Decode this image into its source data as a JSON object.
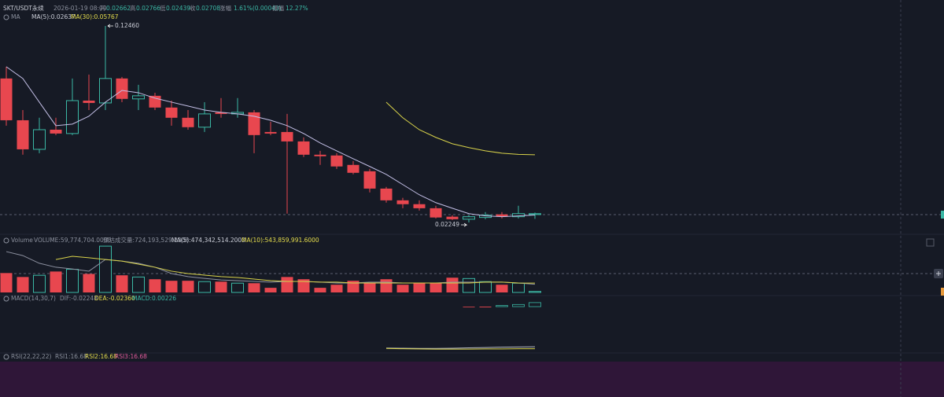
{
  "chart_data": [
    {
      "type": "candlestick",
      "title": "SKT/USDT永续",
      "date": "2026-01-19 08:00",
      "ohlc_labels": [
        "开",
        "高",
        "低",
        "收"
      ],
      "change_label": "涨幅",
      "change": "1.61%(0.00043)",
      "amplitude_label": "振幅",
      "amplitude": "12.27%",
      "indicator": "MA",
      "max_label": "0.12460",
      "up_color": "#3bb8a5",
      "down_color": "#e8474f",
      "ylim": [
        0.0176,
        0.1299
      ],
      "open": [
        0.0973,
        0.0756,
        0.0605,
        0.0707,
        0.0687,
        0.0858,
        0.0846,
        0.0973,
        0.0867,
        0.0883,
        0.0822,
        0.0769,
        0.072,
        0.0797,
        0.0789,
        0.0797,
        0.0695,
        0.0695,
        0.0646,
        0.0577,
        0.0573,
        0.0524,
        0.0491,
        0.0401,
        0.034,
        0.032,
        0.0299,
        0.0255,
        0.0242,
        0.0251,
        0.0267,
        0.0255,
        0.02662
      ],
      "high": [
        0.1034,
        0.0809,
        0.0769,
        0.0769,
        0.0973,
        0.0993,
        0.1246,
        0.0981,
        0.094,
        0.0899,
        0.0858,
        0.0809,
        0.085,
        0.0871,
        0.0871,
        0.0809,
        0.0748,
        0.0789,
        0.0667,
        0.0597,
        0.0585,
        0.0544,
        0.0503,
        0.041,
        0.0353,
        0.034,
        0.0312,
        0.0263,
        0.0263,
        0.0279,
        0.0279,
        0.0312,
        0.02766
      ],
      "low": [
        0.0728,
        0.0577,
        0.0585,
        0.0679,
        0.0679,
        0.0809,
        0.0809,
        0.085,
        0.0809,
        0.0809,
        0.0728,
        0.0707,
        0.0695,
        0.0769,
        0.0769,
        0.0585,
        0.0679,
        0.0271,
        0.0565,
        0.0524,
        0.0503,
        0.0475,
        0.0381,
        0.0328,
        0.0299,
        0.0287,
        0.0246,
        0.0238,
        0.02249,
        0.0242,
        0.0246,
        0.0246,
        0.02439
      ],
      "close": [
        0.0756,
        0.0605,
        0.0707,
        0.0687,
        0.0858,
        0.0846,
        0.0973,
        0.0867,
        0.0883,
        0.0822,
        0.0769,
        0.072,
        0.0789,
        0.0789,
        0.0797,
        0.0679,
        0.0687,
        0.0646,
        0.0577,
        0.0569,
        0.0516,
        0.0483,
        0.0401,
        0.034,
        0.032,
        0.0299,
        0.0251,
        0.0242,
        0.0255,
        0.0263,
        0.0255,
        0.0271,
        0.02708
      ],
      "series": [
        {
          "name": "MA(5):0.02637",
          "color": "#c3bfe6",
          "values": [
            0.1034,
            0.0973,
            0.085,
            0.0728,
            0.0736,
            0.0777,
            0.085,
            0.0911,
            0.0899,
            0.0871,
            0.085,
            0.083,
            0.0809,
            0.0797,
            0.0789,
            0.0777,
            0.0756,
            0.0728,
            0.0687,
            0.0638,
            0.0597,
            0.0556,
            0.0516,
            0.0475,
            0.0422,
            0.0369,
            0.0328,
            0.0299,
            0.0271,
            0.0259,
            0.0255,
            0.0259,
            0.02637
          ]
        },
        {
          "name": "MA(30):0.05767",
          "color": "#d9d34a",
          "values": [
            null,
            null,
            null,
            null,
            null,
            null,
            null,
            null,
            null,
            null,
            null,
            null,
            null,
            null,
            null,
            null,
            null,
            null,
            null,
            null,
            null,
            null,
            null,
            0.085,
            0.0769,
            0.0707,
            0.0667,
            0.0634,
            0.0614,
            0.0597,
            0.0585,
            0.0579,
            0.05767
          ]
        }
      ]
    },
    {
      "type": "bar",
      "title": "Volume",
      "legend_label": "VOLUME:59,774,704.0000",
      "estimate_label": "预估成交量:724,193,529.2308",
      "ylim": [
        0,
        3300000000
      ],
      "values": [
        1130000000,
        900000000,
        1000000000,
        1220000000,
        1350000000,
        1080000000,
        2700000000,
        1000000000,
        900000000,
        770000000,
        680000000,
        680000000,
        630000000,
        630000000,
        540000000,
        540000000,
        270000000,
        900000000,
        770000000,
        270000000,
        450000000,
        680000000,
        540000000,
        770000000,
        450000000,
        540000000,
        540000000,
        860000000,
        810000000,
        630000000,
        450000000,
        540000000,
        59774704
      ],
      "series": [
        {
          "name": "MA(5):474,342,514.2000",
          "color": "#8d91a0",
          "values": [
            2380000000,
            2150000000,
            1700000000,
            1470000000,
            1370000000,
            1240000000,
            1920000000,
            1830000000,
            1700000000,
            1470000000,
            1100000000,
            920000000,
            820000000,
            730000000,
            690000000,
            640000000,
            600000000,
            640000000,
            640000000,
            600000000,
            550000000,
            550000000,
            600000000,
            600000000,
            550000000,
            550000000,
            550000000,
            600000000,
            600000000,
            600000000,
            600000000,
            550000000,
            474342514.2
          ]
        },
        {
          "name": "MA(10):543,859,991.6000",
          "color": "#d9d34a",
          "values": [
            null,
            null,
            null,
            1920000000,
            2110000000,
            2020000000,
            1920000000,
            1830000000,
            1650000000,
            1470000000,
            1240000000,
            1100000000,
            1010000000,
            920000000,
            870000000,
            780000000,
            690000000,
            640000000,
            640000000,
            600000000,
            600000000,
            550000000,
            550000000,
            550000000,
            550000000,
            550000000,
            550000000,
            550000000,
            550000000,
            600000000,
            600000000,
            550000000,
            543859991.6
          ]
        }
      ]
    },
    {
      "type": "macd",
      "title": "MACD(14,30,7)",
      "ylim": [
        -0.0255,
        0.0053
      ],
      "histogram": {
        "name": "MACD:0.00226",
        "values": [
          null,
          null,
          null,
          null,
          null,
          null,
          null,
          null,
          null,
          null,
          null,
          null,
          null,
          null,
          null,
          null,
          null,
          null,
          null,
          null,
          null,
          null,
          null,
          null,
          null,
          null,
          null,
          null,
          -0.0003,
          -0.0004,
          0.0006,
          0.0012,
          0.00226
        ]
      },
      "series": [
        {
          "name": "DIF:-0.02248",
          "color": "#b9bcc6",
          "values": [
            null,
            null,
            null,
            null,
            null,
            null,
            null,
            null,
            null,
            null,
            null,
            null,
            null,
            null,
            null,
            null,
            null,
            null,
            null,
            null,
            null,
            null,
            null,
            -0.0232,
            -0.0233,
            -0.0234,
            -0.0234,
            -0.0233,
            -0.0231,
            -0.0229,
            -0.0227,
            -0.0226,
            -0.02248
          ]
        },
        {
          "name": "DEA:-0.02360",
          "color": "#d9d34a",
          "values": [
            null,
            null,
            null,
            null,
            null,
            null,
            null,
            null,
            null,
            null,
            null,
            null,
            null,
            null,
            null,
            null,
            null,
            null,
            null,
            null,
            null,
            null,
            null,
            -0.0234,
            -0.0236,
            -0.0237,
            -0.0238,
            -0.0238,
            -0.0238,
            -0.0237,
            -0.0237,
            -0.0236,
            -0.0236
          ]
        }
      ]
    },
    {
      "type": "rsi",
      "title": "RSI(22,22,22)",
      "labels": [
        "RSI1:16.68",
        "RSI2:16.68",
        "RSI3:16.68"
      ]
    }
  ]
}
